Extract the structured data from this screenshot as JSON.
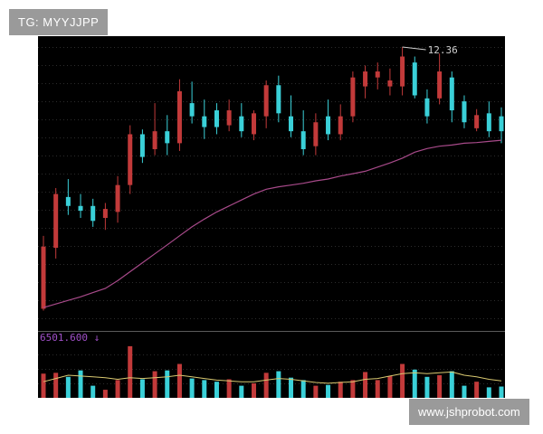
{
  "watermarks": {
    "top_left": "TG: MYYJJPP",
    "bottom_right": "www.jshprobot.com"
  },
  "colors": {
    "up": "#c23a3a",
    "down": "#3ad0d8",
    "ma_price": "#a84a8a",
    "ma_volume": "#d8c870",
    "background": "#000000",
    "volume_caption": "#a050c8",
    "annotation": "#d0d0d0"
  },
  "chart_data": [
    {
      "type": "candlestick",
      "annotation": {
        "label": "12.36",
        "index": 29
      },
      "ma": [
        8.0,
        8.06,
        8.12,
        8.18,
        8.25,
        8.32,
        8.45,
        8.6,
        8.75,
        8.9,
        9.05,
        9.2,
        9.35,
        9.48,
        9.6,
        9.7,
        9.8,
        9.9,
        9.98,
        10.02,
        10.05,
        10.08,
        10.12,
        10.15,
        10.2,
        10.24,
        10.28,
        10.35,
        10.42,
        10.5,
        10.6,
        10.66,
        10.7,
        10.72,
        10.75,
        10.76,
        10.78,
        10.8
      ],
      "ohlc": [
        {
          "o": 7.98,
          "h": 9.2,
          "l": 7.95,
          "c": 9.02
        },
        {
          "o": 9.0,
          "h": 10.0,
          "l": 8.82,
          "c": 9.9
        },
        {
          "o": 9.85,
          "h": 10.15,
          "l": 9.55,
          "c": 9.7
        },
        {
          "o": 9.7,
          "h": 9.9,
          "l": 9.5,
          "c": 9.62
        },
        {
          "o": 9.7,
          "h": 9.82,
          "l": 9.35,
          "c": 9.45
        },
        {
          "o": 9.5,
          "h": 9.75,
          "l": 9.3,
          "c": 9.65
        },
        {
          "o": 9.6,
          "h": 10.2,
          "l": 9.42,
          "c": 10.05
        },
        {
          "o": 10.05,
          "h": 11.05,
          "l": 9.9,
          "c": 10.9
        },
        {
          "o": 10.9,
          "h": 10.98,
          "l": 10.42,
          "c": 10.52
        },
        {
          "o": 10.65,
          "h": 11.42,
          "l": 10.55,
          "c": 10.95
        },
        {
          "o": 10.95,
          "h": 11.22,
          "l": 10.55,
          "c": 10.75
        },
        {
          "o": 10.75,
          "h": 11.82,
          "l": 10.62,
          "c": 11.62
        },
        {
          "o": 11.42,
          "h": 11.78,
          "l": 11.08,
          "c": 11.2
        },
        {
          "o": 11.2,
          "h": 11.48,
          "l": 10.82,
          "c": 11.02
        },
        {
          "o": 11.3,
          "h": 11.42,
          "l": 10.9,
          "c": 11.02
        },
        {
          "o": 11.05,
          "h": 11.48,
          "l": 10.95,
          "c": 11.3
        },
        {
          "o": 11.2,
          "h": 11.42,
          "l": 10.85,
          "c": 10.95
        },
        {
          "o": 10.9,
          "h": 11.3,
          "l": 10.8,
          "c": 11.25
        },
        {
          "o": 11.2,
          "h": 11.8,
          "l": 11.0,
          "c": 11.72
        },
        {
          "o": 11.72,
          "h": 11.88,
          "l": 11.1,
          "c": 11.25
        },
        {
          "o": 11.2,
          "h": 11.55,
          "l": 10.85,
          "c": 10.95
        },
        {
          "o": 10.95,
          "h": 11.3,
          "l": 10.55,
          "c": 10.65
        },
        {
          "o": 10.7,
          "h": 11.25,
          "l": 10.55,
          "c": 11.1
        },
        {
          "o": 11.2,
          "h": 11.48,
          "l": 10.8,
          "c": 10.9
        },
        {
          "o": 10.9,
          "h": 11.4,
          "l": 10.8,
          "c": 11.2
        },
        {
          "o": 11.2,
          "h": 11.95,
          "l": 11.1,
          "c": 11.85
        },
        {
          "o": 11.7,
          "h": 12.05,
          "l": 11.5,
          "c": 11.95
        },
        {
          "o": 11.85,
          "h": 12.1,
          "l": 11.65,
          "c": 11.95
        },
        {
          "o": 11.7,
          "h": 12.0,
          "l": 11.55,
          "c": 11.8
        },
        {
          "o": 11.7,
          "h": 12.36,
          "l": 11.55,
          "c": 12.2
        },
        {
          "o": 12.1,
          "h": 12.2,
          "l": 11.5,
          "c": 11.55
        },
        {
          "o": 11.5,
          "h": 11.65,
          "l": 11.08,
          "c": 11.2
        },
        {
          "o": 11.5,
          "h": 12.25,
          "l": 11.4,
          "c": 11.95
        },
        {
          "o": 11.85,
          "h": 11.95,
          "l": 11.1,
          "c": 11.3
        },
        {
          "o": 11.45,
          "h": 11.55,
          "l": 11.0,
          "c": 11.1
        },
        {
          "o": 11.0,
          "h": 11.32,
          "l": 10.95,
          "c": 11.22
        },
        {
          "o": 11.25,
          "h": 11.45,
          "l": 10.85,
          "c": 10.95
        },
        {
          "o": 11.2,
          "h": 11.35,
          "l": 10.75,
          "c": 10.95
        }
      ]
    },
    {
      "type": "bar",
      "caption": "6501.600 ↓",
      "values": [
        3.0,
        3.1,
        2.6,
        3.4,
        1.5,
        1.0,
        2.2,
        6.4,
        2.3,
        3.3,
        3.4,
        4.2,
        2.4,
        2.2,
        2.0,
        2.3,
        1.5,
        1.8,
        3.1,
        3.3,
        2.5,
        2.2,
        1.5,
        1.6,
        2.0,
        2.2,
        3.2,
        2.2,
        2.7,
        4.2,
        3.5,
        2.6,
        2.8,
        3.3,
        1.5,
        2.0,
        1.3,
        1.4
      ],
      "ma": [
        2.0,
        2.4,
        2.8,
        2.7,
        2.6,
        2.5,
        2.3,
        2.5,
        2.4,
        2.5,
        2.6,
        2.8,
        2.6,
        2.4,
        2.2,
        2.1,
        2.0,
        2.0,
        2.2,
        2.4,
        2.3,
        2.1,
        1.9,
        1.8,
        1.9,
        2.0,
        2.3,
        2.4,
        2.7,
        3.0,
        3.1,
        3.0,
        3.1,
        3.2,
        2.8,
        2.6,
        2.3,
        2.1
      ]
    }
  ]
}
